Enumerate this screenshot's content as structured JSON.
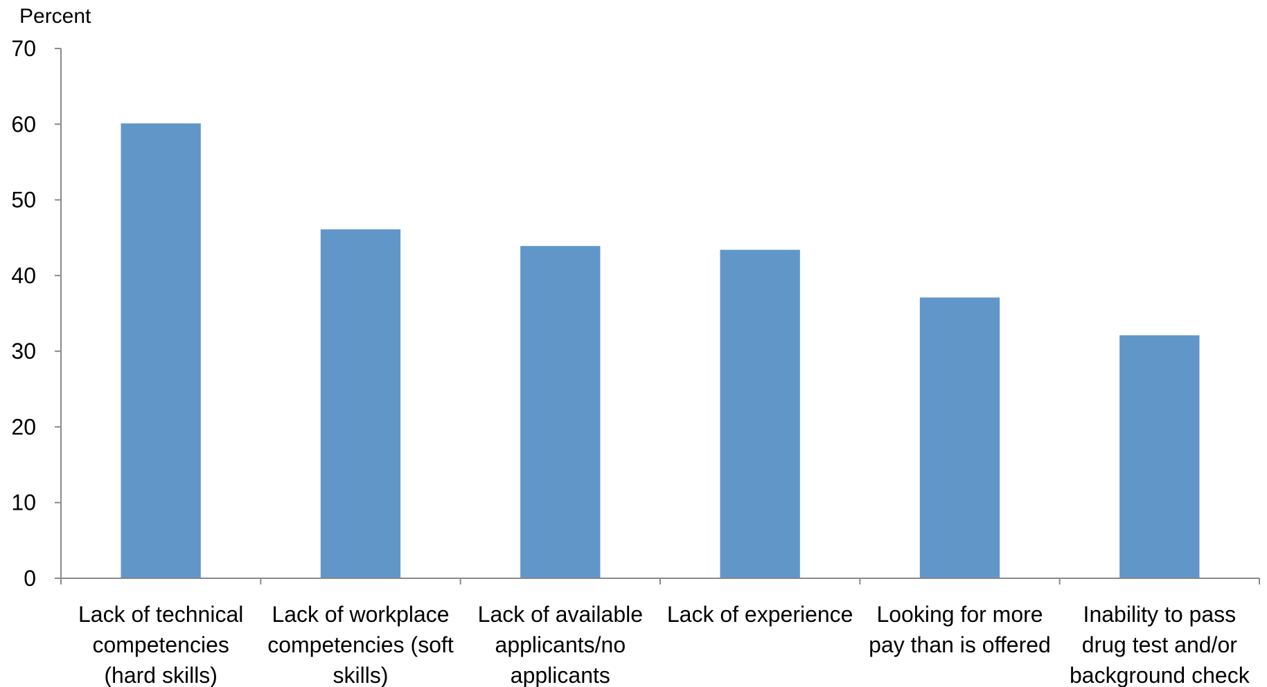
{
  "chart_data": {
    "type": "bar",
    "title": "",
    "xlabel": "",
    "ylabel": "Percent",
    "ylim": [
      0,
      70
    ],
    "yticks": [
      0,
      10,
      20,
      30,
      40,
      50,
      60,
      70
    ],
    "grid": false,
    "legend": "none",
    "bar_color": "#6196C9",
    "categories": [
      [
        "Lack of technical",
        "competencies",
        "(hard skills)"
      ],
      [
        "Lack of workplace",
        "competencies (soft",
        "skills)"
      ],
      [
        "Lack of available",
        "applicants/no",
        "applicants"
      ],
      [
        "Lack of experience"
      ],
      [
        "Looking for more",
        "pay than is offered"
      ],
      [
        "Inability to pass",
        "drug test and/or",
        "background check"
      ]
    ],
    "values": [
      60.1,
      46.1,
      43.9,
      43.4,
      37.1,
      32.1
    ]
  }
}
